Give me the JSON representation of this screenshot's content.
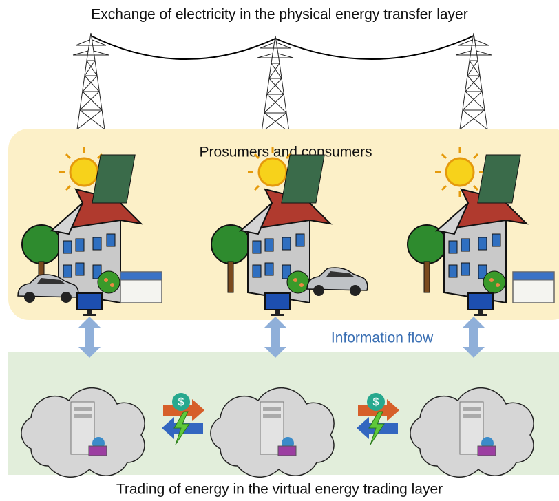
{
  "header": {
    "title": "Exchange of electricity in the physical energy transfer layer"
  },
  "prosumer_panel": {
    "label": "Prosumers and consumers"
  },
  "information": {
    "label": "Information flow"
  },
  "trades": [
    {
      "symbol": "$"
    },
    {
      "symbol": "$"
    }
  ],
  "footer": {
    "caption": "Trading of energy in the virtual energy trading layer"
  }
}
